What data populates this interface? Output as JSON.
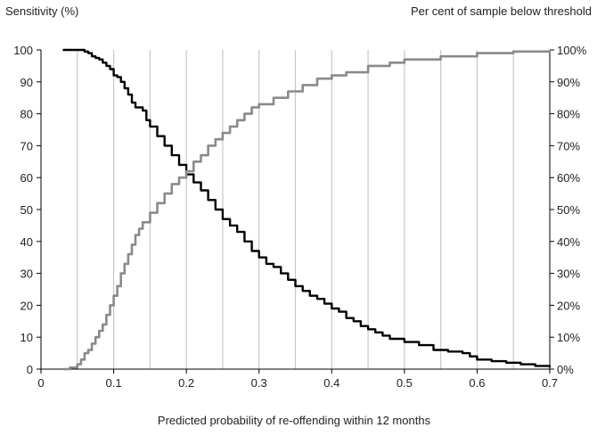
{
  "chart_data": {
    "type": "line",
    "title": "",
    "xlabel": "Predicted probability of re-offending within 12 months",
    "ylabel_left": "Sensitivity (%)",
    "ylabel_right": "Per cent of sample below threshold",
    "xlim": [
      0,
      0.7
    ],
    "ylim_left": [
      0,
      100
    ],
    "ylim_right": [
      0,
      100
    ],
    "x_ticks": [
      "0",
      "0.1",
      "0.2",
      "0.3",
      "0.4",
      "0.5",
      "0.6",
      "0.7"
    ],
    "y_ticks_left": [
      "0",
      "10",
      "20",
      "30",
      "40",
      "50",
      "60",
      "70",
      "80",
      "90",
      "100"
    ],
    "y_ticks_right": [
      "0%",
      "10%",
      "20%",
      "30%",
      "40%",
      "50%",
      "60%",
      "70%",
      "80%",
      "90%",
      "100%"
    ],
    "grid": {
      "vertical": true,
      "horizontal": false,
      "vertical_step": 0.05
    },
    "legend": "none",
    "series": [
      {
        "axis": "left",
        "color": "#000000",
        "x": [
          0.03,
          0.05,
          0.06,
          0.065,
          0.07,
          0.075,
          0.08,
          0.085,
          0.09,
          0.095,
          0.1,
          0.105,
          0.11,
          0.115,
          0.12,
          0.125,
          0.13,
          0.14,
          0.145,
          0.15,
          0.16,
          0.17,
          0.18,
          0.19,
          0.2,
          0.21,
          0.22,
          0.23,
          0.24,
          0.25,
          0.26,
          0.27,
          0.28,
          0.29,
          0.3,
          0.31,
          0.32,
          0.33,
          0.34,
          0.35,
          0.36,
          0.37,
          0.38,
          0.39,
          0.4,
          0.41,
          0.42,
          0.43,
          0.44,
          0.45,
          0.46,
          0.47,
          0.48,
          0.5,
          0.52,
          0.54,
          0.56,
          0.58,
          0.59,
          0.6,
          0.62,
          0.64,
          0.66,
          0.68,
          0.7
        ],
        "y": [
          100,
          100,
          99.5,
          99,
          98,
          97.5,
          97,
          96,
          95,
          94,
          92,
          91.5,
          90,
          88,
          86,
          83.5,
          82,
          81,
          78,
          76,
          73,
          70,
          67,
          64,
          61,
          58.5,
          56,
          53,
          50,
          47,
          45,
          43,
          40,
          37,
          35,
          33,
          32,
          30,
          28,
          26,
          24.5,
          23,
          22,
          20.5,
          19,
          18,
          16,
          15,
          13.5,
          12.5,
          11.5,
          10.5,
          9.5,
          8.5,
          7.5,
          6,
          5.5,
          5,
          4,
          3,
          2.5,
          2,
          1.5,
          1,
          0.5
        ]
      },
      {
        "axis": "right",
        "color": "#8a8a8a",
        "x": [
          0.03,
          0.04,
          0.05,
          0.055,
          0.06,
          0.065,
          0.07,
          0.075,
          0.08,
          0.085,
          0.09,
          0.095,
          0.1,
          0.105,
          0.11,
          0.115,
          0.12,
          0.125,
          0.13,
          0.135,
          0.14,
          0.15,
          0.16,
          0.17,
          0.18,
          0.19,
          0.2,
          0.21,
          0.22,
          0.23,
          0.24,
          0.25,
          0.26,
          0.27,
          0.28,
          0.29,
          0.3,
          0.32,
          0.34,
          0.36,
          0.38,
          0.4,
          0.42,
          0.45,
          0.48,
          0.5,
          0.55,
          0.6,
          0.65,
          0.7
        ],
        "y": [
          0,
          0.5,
          1.5,
          3,
          5,
          6,
          8,
          10,
          12,
          14,
          17,
          20,
          23,
          26,
          30,
          33,
          36,
          39,
          42,
          44,
          46,
          49,
          52,
          55,
          58,
          60,
          62,
          65,
          67,
          70,
          72,
          74,
          76,
          78,
          80,
          82,
          83,
          85,
          87,
          89,
          91,
          92,
          93,
          95,
          96,
          97,
          98,
          99,
          99.5,
          100
        ]
      }
    ]
  }
}
